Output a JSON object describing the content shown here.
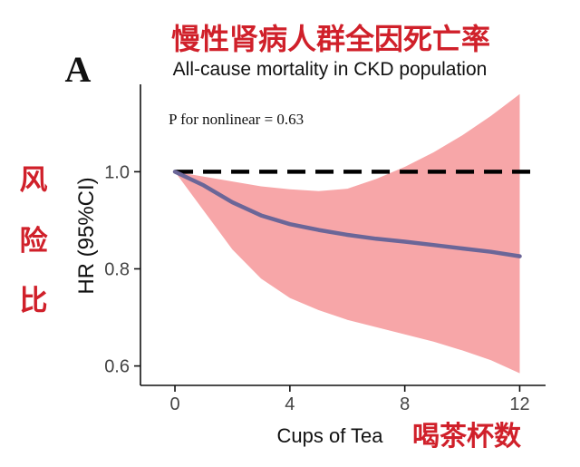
{
  "cn_title": "慢性肾病人群全因死亡率",
  "panel_label": "A",
  "cn_ylabel": [
    "风",
    "险",
    "比"
  ],
  "cn_xlabel": "喝茶杯数",
  "colors": {
    "band": "#f7a6a8",
    "line": "#6b6698",
    "annotation": "#d0202a",
    "reference": "#000000"
  },
  "chart_data": {
    "type": "line",
    "title": "All-cause mortality in CKD population",
    "xlabel": "Cups of Tea",
    "ylabel": "HR (95%CI)",
    "annotation": "P for nonlinear = 0.63",
    "xlim": [
      -1.2,
      12.9
    ],
    "ylim": [
      0.56,
      1.18
    ],
    "xticks": [
      0,
      4,
      8,
      12
    ],
    "xtick_labels": [
      "0",
      "4",
      "8",
      "12"
    ],
    "yticks": [
      0.6,
      0.8,
      1.0
    ],
    "ytick_labels": [
      "0.6",
      "0.8",
      "1.0"
    ],
    "reference_line": 1.0,
    "grid": false,
    "x": [
      0,
      1,
      2,
      3,
      4,
      5,
      6,
      7,
      8,
      9,
      10,
      11,
      12
    ],
    "hr": [
      1.0,
      0.972,
      0.937,
      0.91,
      0.892,
      0.88,
      0.87,
      0.862,
      0.856,
      0.849,
      0.842,
      0.835,
      0.826
    ],
    "lower": [
      1.0,
      0.92,
      0.84,
      0.78,
      0.74,
      0.715,
      0.695,
      0.68,
      0.665,
      0.65,
      0.632,
      0.612,
      0.585
    ],
    "upper": [
      1.0,
      0.99,
      0.98,
      0.97,
      0.964,
      0.96,
      0.965,
      0.985,
      1.01,
      1.04,
      1.075,
      1.115,
      1.16
    ]
  }
}
